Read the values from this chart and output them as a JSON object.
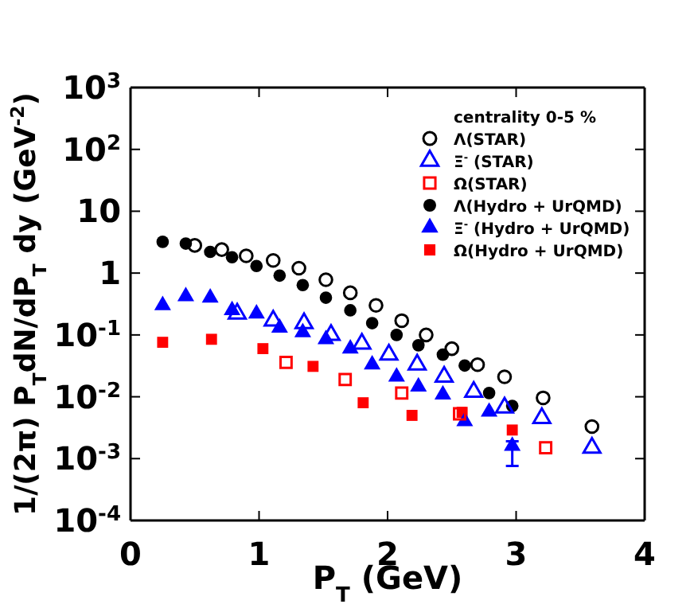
{
  "chart_data": {
    "type": "scatter",
    "xlabel": "P$_{T}$ (GeV)",
    "ylabel": "1/(2π) P$_{T}$dN/dP$_{T}$ dy (GeV$^{-2}$)",
    "log": "y",
    "xlim": [
      0,
      4
    ],
    "xticks": [
      0,
      1,
      2,
      3,
      4
    ],
    "ylim": [
      0.0001,
      1000
    ],
    "yticks": [
      {
        "value": 0.0001,
        "label": "10$^{-4}$"
      },
      {
        "value": 0.001,
        "label": "10$^{-3}$"
      },
      {
        "value": 0.01,
        "label": "10$^{-2}$"
      },
      {
        "value": 0.1,
        "label": "10$^{-1}$"
      },
      1,
      10,
      {
        "value": 100,
        "label": "10$^{2}$"
      },
      {
        "value": 1000,
        "label": "10$^{3}$"
      }
    ],
    "legend": "top right",
    "legend_title": "centrality 0-5 %",
    "series": [
      {
        "name": "Λ(STAR)",
        "color": "#000000",
        "marker": "circle-open",
        "x": [
          0.5,
          0.71,
          0.9,
          1.11,
          1.31,
          1.52,
          1.71,
          1.91,
          2.11,
          2.3,
          2.5,
          2.7,
          2.91,
          3.21,
          3.59
        ],
        "values": [
          2.8,
          2.4,
          1.9,
          1.6,
          1.2,
          0.78,
          0.48,
          0.3,
          0.17,
          0.1,
          0.06,
          0.033,
          0.021,
          0.0096,
          0.0033
        ]
      },
      {
        "name": "Ξ$^{-}$ (STAR)",
        "color": "#0000ff",
        "marker": "triangle-open",
        "x": [
          0.83,
          1.11,
          1.35,
          1.56,
          1.8,
          2.01,
          2.23,
          2.44,
          2.67,
          2.91,
          3.2,
          3.59
        ],
        "values": [
          0.22,
          0.17,
          0.155,
          0.1,
          0.072,
          0.048,
          0.033,
          0.021,
          0.012,
          0.0067,
          0.0045,
          0.0015
        ]
      },
      {
        "name": "Ω(STAR)",
        "color": "#ff0000",
        "marker": "square-open",
        "x": [
          1.21,
          1.67,
          2.11,
          2.56,
          3.23
        ],
        "values": [
          0.036,
          0.019,
          0.0115,
          0.0053,
          0.0015
        ]
      },
      {
        "name": "Λ(Hydro + UrQMD)",
        "color": "#000000",
        "marker": "circle",
        "x": [
          0.25,
          0.43,
          0.62,
          0.79,
          0.98,
          1.16,
          1.34,
          1.52,
          1.71,
          1.88,
          2.07,
          2.24,
          2.43,
          2.6,
          2.79,
          2.97
        ],
        "values": [
          3.2,
          3.0,
          2.2,
          1.8,
          1.3,
          0.91,
          0.64,
          0.4,
          0.25,
          0.155,
          0.1,
          0.068,
          0.048,
          0.032,
          0.0115,
          0.0071
        ]
      },
      {
        "name": "Ξ$^{-}$ (Hydro + UrQMD)",
        "color": "#0000ff",
        "marker": "triangle",
        "x": [
          0.25,
          0.43,
          0.62,
          0.79,
          0.98,
          1.16,
          1.34,
          1.52,
          1.71,
          1.88,
          2.07,
          2.24,
          2.43,
          2.6,
          2.79,
          2.97
        ],
        "values": [
          0.3,
          0.42,
          0.4,
          0.25,
          0.22,
          0.13,
          0.11,
          0.085,
          0.06,
          0.033,
          0.021,
          0.0145,
          0.0108,
          0.004,
          0.0057,
          0.0016
        ],
        "errors": [
          null,
          null,
          null,
          null,
          null,
          null,
          null,
          null,
          null,
          null,
          null,
          null,
          null,
          null,
          null,
          [
            0.00076,
            0.0019
          ]
        ]
      },
      {
        "name": "Ω(Hydro + UrQMD)",
        "color": "#ff0000",
        "marker": "square",
        "x": [
          0.25,
          0.63,
          1.03,
          1.42,
          1.81,
          2.19,
          2.58,
          2.97
        ],
        "values": [
          0.076,
          0.085,
          0.06,
          0.031,
          0.008,
          0.005,
          0.0056,
          0.0029
        ]
      }
    ]
  }
}
